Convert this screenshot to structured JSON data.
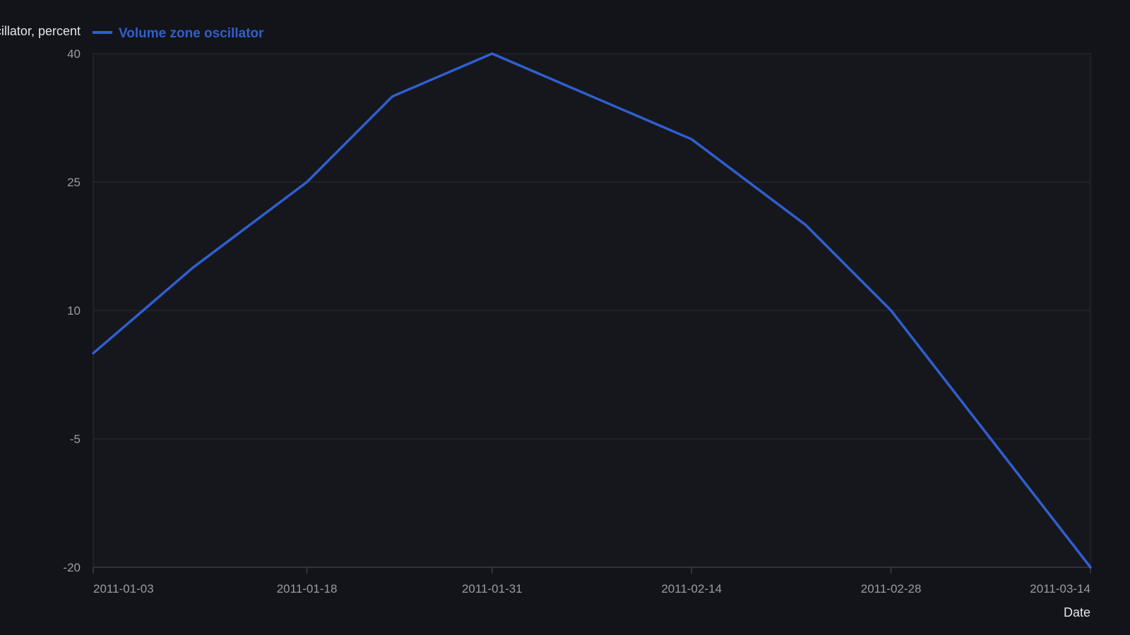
{
  "colors": {
    "background": "#131419",
    "plot_background": "#16171d",
    "grid": "#2a2c33",
    "axis": "#3a3c44",
    "tick_text": "#9a9ca3",
    "title_text": "#e4e5e8",
    "series_line": "#2f5fd0"
  },
  "chart_data": {
    "type": "line",
    "title": "",
    "xlabel": "Date",
    "ylabel": "Volume zone oscillator, percent",
    "ylim": [
      -20,
      40
    ],
    "yticks": [
      -20,
      -5,
      10,
      25,
      40
    ],
    "xticks": [
      "2011-01-03",
      "2011-01-18",
      "2011-01-31",
      "2011-02-14",
      "2011-02-28",
      "2011-03-14"
    ],
    "grid": true,
    "legend_position": "top-left",
    "series": [
      {
        "name": "Volume zone oscillator",
        "color": "#2f5fd0",
        "x": [
          "2011-01-03",
          "2011-01-10",
          "2011-01-18",
          "2011-01-24",
          "2011-01-31",
          "2011-02-07",
          "2011-02-14",
          "2011-02-22",
          "2011-02-28",
          "2011-03-07",
          "2011-03-14"
        ],
        "y": [
          5,
          15,
          25,
          35,
          40,
          35,
          30,
          20,
          10,
          -5,
          -20
        ]
      }
    ]
  }
}
